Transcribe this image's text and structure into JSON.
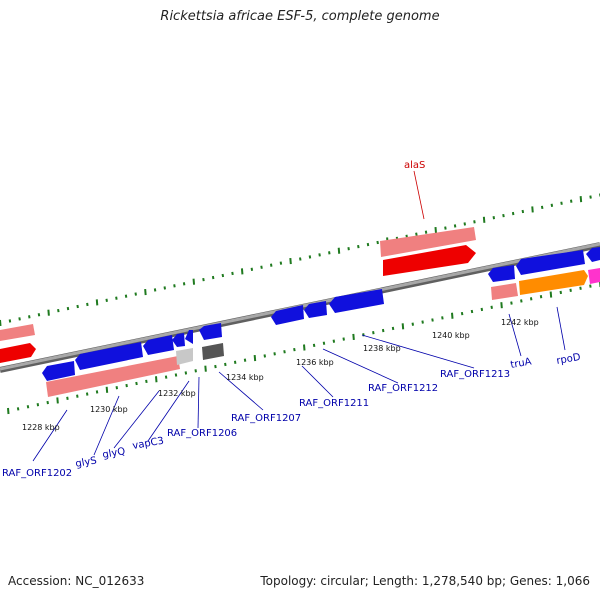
{
  "title": "Rickettsia africae ESF-5, complete genome",
  "footer": {
    "accession": "Accession: NC_012633",
    "topology": "Topology: circular; Length: 1,278,540 bp; Genes: 1,066"
  },
  "colors": {
    "backbone": "#909090",
    "tick": "#1f7a1f",
    "forward_label": "#cc0000",
    "reverse_label": "#0000aa",
    "cds_blue": "#1010dd",
    "rna_pink": "#f08080",
    "rna_red": "#ee0000",
    "orange": "#ff8c00",
    "magenta": "#ff33cc",
    "grey_light": "#c8c8c8",
    "grey_dark": "#555555"
  },
  "scale_labels": [
    "1228 kbp",
    "1230 kbp",
    "1232 kbp",
    "1234 kbp",
    "1236 kbp",
    "1238 kbp",
    "1240 kbp",
    "1242 kbp"
  ],
  "forward_labels": [
    "alaS"
  ],
  "gene_labels": [
    "RAF_ORF1202",
    "glyS",
    "glyQ",
    "vapC3",
    "RAF_ORF1206",
    "RAF_ORF1207",
    "RAF_ORF1211",
    "RAF_ORF1212",
    "RAF_ORF1213",
    "truA",
    "rpoD"
  ]
}
